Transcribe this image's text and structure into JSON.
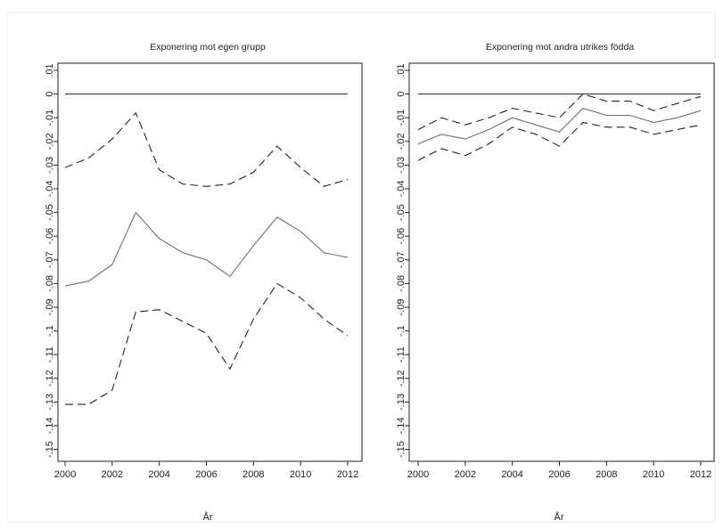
{
  "chart_data": [
    {
      "type": "line",
      "title": "Exponering mot egen grupp",
      "xlabel": "År",
      "ylabel": "",
      "x": [
        2000,
        2001,
        2002,
        2003,
        2004,
        2005,
        2006,
        2007,
        2008,
        2009,
        2010,
        2011,
        2012
      ],
      "xlim": [
        2000,
        2012
      ],
      "ylim": [
        -0.155,
        0.01
      ],
      "xticks": [
        "2000",
        "2002",
        "2004",
        "2006",
        "2008",
        "2010",
        "2012"
      ],
      "yticks": [
        ".01",
        "0",
        "-.01",
        "-.02",
        "-.03",
        "-.04",
        "-.05",
        "-.06",
        "-.07",
        "-.08",
        "-.09",
        "-.1",
        "-.11",
        "-.12",
        "-.13",
        "-.14",
        "-.15"
      ],
      "reference_line": 0,
      "series": [
        {
          "style": "solid",
          "color": "#6e6e6e",
          "values": [
            -0.081,
            -0.079,
            -0.072,
            -0.05,
            -0.061,
            -0.067,
            -0.07,
            -0.077,
            -0.064,
            -0.052,
            -0.058,
            -0.067,
            -0.069
          ]
        },
        {
          "style": "dashed",
          "color": "#222222",
          "values": [
            -0.031,
            -0.027,
            -0.019,
            -0.008,
            -0.032,
            -0.038,
            -0.039,
            -0.038,
            -0.033,
            -0.022,
            -0.031,
            -0.039,
            -0.036
          ]
        },
        {
          "style": "dashed",
          "color": "#222222",
          "values": [
            -0.131,
            -0.131,
            -0.125,
            -0.092,
            -0.091,
            -0.096,
            -0.101,
            -0.116,
            -0.095,
            -0.08,
            -0.086,
            -0.095,
            -0.102
          ]
        }
      ]
    },
    {
      "type": "line",
      "title": "Exponering mot andra utrikes födda",
      "xlabel": "År",
      "ylabel": "",
      "x": [
        2000,
        2001,
        2002,
        2003,
        2004,
        2005,
        2006,
        2007,
        2008,
        2009,
        2010,
        2011,
        2012
      ],
      "xlim": [
        2000,
        2012
      ],
      "ylim": [
        -0.155,
        0.01
      ],
      "xticks": [
        "2000",
        "2002",
        "2004",
        "2006",
        "2008",
        "2010",
        "2012"
      ],
      "yticks": [
        ".01",
        "0",
        "-.01",
        "-.02",
        "-.03",
        "-.04",
        "-.05",
        "-.06",
        "-.07",
        "-.08",
        "-.09",
        "-.1",
        "-.11",
        "-.12",
        "-.13",
        "-.14",
        "-.15"
      ],
      "reference_line": 0,
      "series": [
        {
          "style": "solid",
          "color": "#6e6e6e",
          "values": [
            -0.021,
            -0.017,
            -0.019,
            -0.015,
            -0.01,
            -0.013,
            -0.016,
            -0.006,
            -0.009,
            -0.009,
            -0.012,
            -0.01,
            -0.007
          ]
        },
        {
          "style": "dashed",
          "color": "#222222",
          "values": [
            -0.015,
            -0.01,
            -0.013,
            -0.01,
            -0.006,
            -0.008,
            -0.01,
            0.0,
            -0.003,
            -0.003,
            -0.007,
            -0.004,
            -0.001
          ]
        },
        {
          "style": "dashed",
          "color": "#222222",
          "values": [
            -0.028,
            -0.023,
            -0.026,
            -0.021,
            -0.014,
            -0.017,
            -0.022,
            -0.012,
            -0.014,
            -0.014,
            -0.017,
            -0.015,
            -0.013
          ]
        }
      ]
    }
  ],
  "colors": {
    "background": "#ffffff",
    "outer_border": "#e8e8e8",
    "axis": "#222222",
    "reference_line": "#222222"
  }
}
